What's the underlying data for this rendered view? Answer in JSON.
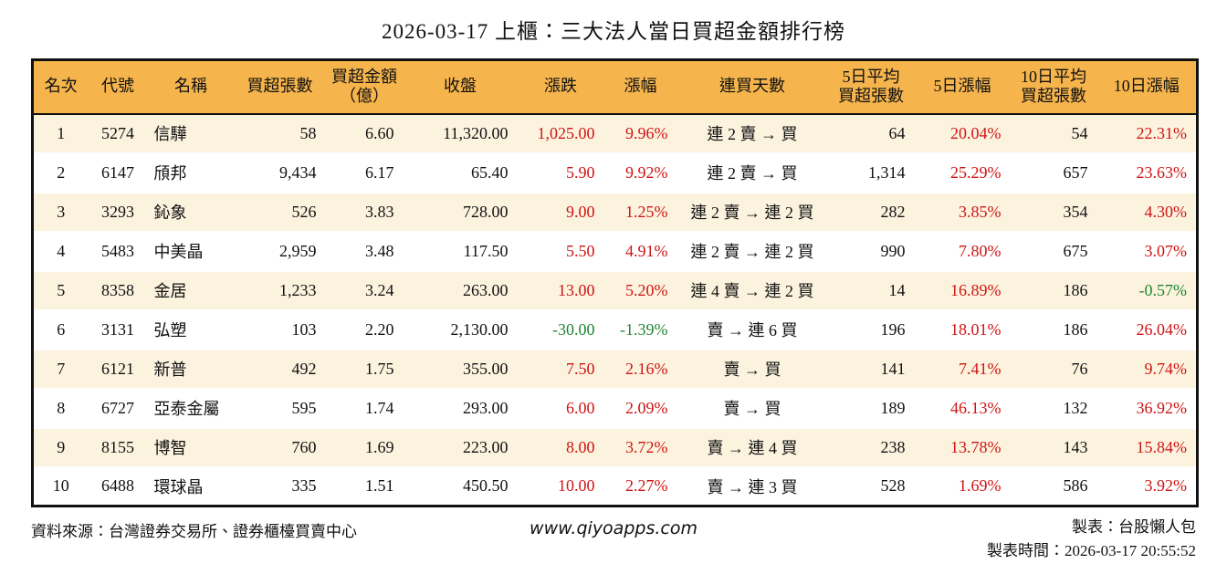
{
  "title": "2026-03-17 上櫃：三大法人當日買超金額排行榜",
  "colors": {
    "header_bg": "#F5B44C",
    "row_stripe": "#FCF3DF",
    "border": "#111111",
    "up_red": "#D01414",
    "down_green": "#1E8632"
  },
  "table": {
    "headers": [
      {
        "key": "rank",
        "lines": [
          "名次"
        ]
      },
      {
        "key": "code",
        "lines": [
          "代號"
        ]
      },
      {
        "key": "name",
        "lines": [
          "名稱"
        ]
      },
      {
        "key": "netbuy-volume",
        "lines": [
          "買超張數"
        ]
      },
      {
        "key": "netbuy-amount",
        "lines": [
          "買超金額",
          "（億）"
        ]
      },
      {
        "key": "close",
        "lines": [
          "收盤"
        ]
      },
      {
        "key": "change",
        "lines": [
          "漲跌"
        ]
      },
      {
        "key": "change-pct",
        "lines": [
          "漲幅"
        ]
      },
      {
        "key": "streak",
        "lines": [
          "連買天數"
        ]
      },
      {
        "key": "avg5-volume",
        "lines": [
          "5日平均",
          "買超張數"
        ]
      },
      {
        "key": "pct-5d",
        "lines": [
          "5日漲幅"
        ]
      },
      {
        "key": "avg10-volume",
        "lines": [
          "10日平均",
          "買超張數"
        ]
      },
      {
        "key": "pct-10d",
        "lines": [
          "10日漲幅"
        ]
      }
    ],
    "rows": [
      [
        "1",
        "5274",
        "信驊",
        "58",
        "6.60",
        "11,320.00",
        "1,025.00",
        "9.96%",
        "連 2 賣 → 買",
        "64",
        "20.04%",
        "54",
        "22.31%"
      ],
      [
        "2",
        "6147",
        "頎邦",
        "9,434",
        "6.17",
        "65.40",
        "5.90",
        "9.92%",
        "連 2 賣 → 買",
        "1,314",
        "25.29%",
        "657",
        "23.63%"
      ],
      [
        "3",
        "3293",
        "鈊象",
        "526",
        "3.83",
        "728.00",
        "9.00",
        "1.25%",
        "連 2 賣 → 連 2 買",
        "282",
        "3.85%",
        "354",
        "4.30%"
      ],
      [
        "4",
        "5483",
        "中美晶",
        "2,959",
        "3.48",
        "117.50",
        "5.50",
        "4.91%",
        "連 2 賣 → 連 2 買",
        "990",
        "7.80%",
        "675",
        "3.07%"
      ],
      [
        "5",
        "8358",
        "金居",
        "1,233",
        "3.24",
        "263.00",
        "13.00",
        "5.20%",
        "連 4 賣 → 連 2 買",
        "14",
        "16.89%",
        "186",
        "-0.57%"
      ],
      [
        "6",
        "3131",
        "弘塑",
        "103",
        "2.20",
        "2,130.00",
        "-30.00",
        "-1.39%",
        "賣 → 連 6 買",
        "196",
        "18.01%",
        "186",
        "26.04%"
      ],
      [
        "7",
        "6121",
        "新普",
        "492",
        "1.75",
        "355.00",
        "7.50",
        "2.16%",
        "賣 → 買",
        "141",
        "7.41%",
        "76",
        "9.74%"
      ],
      [
        "8",
        "6727",
        "亞泰金屬",
        "595",
        "1.74",
        "293.00",
        "6.00",
        "2.09%",
        "賣 → 買",
        "189",
        "46.13%",
        "132",
        "36.92%"
      ],
      [
        "9",
        "8155",
        "博智",
        "760",
        "1.69",
        "223.00",
        "8.00",
        "3.72%",
        "賣 → 連 4 買",
        "238",
        "13.78%",
        "143",
        "15.84%"
      ],
      [
        "10",
        "6488",
        "環球晶",
        "335",
        "1.51",
        "450.50",
        "10.00",
        "2.27%",
        "賣 → 連 3 買",
        "528",
        "1.69%",
        "586",
        "3.92%"
      ]
    ]
  },
  "footer": {
    "source": "資料來源：台灣證券交易所、證券櫃檯買賣中心",
    "website": "www.qiyoapps.com",
    "maker": "製表：台股懶人包",
    "timestamp": "製表時間：2026-03-17 20:55:52"
  }
}
